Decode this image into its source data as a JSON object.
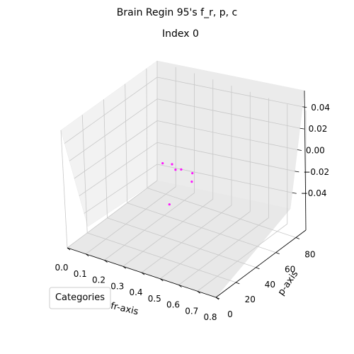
{
  "chart_data": {
    "type": "scatter",
    "title": "Brain Regin 95's f_r, p, c",
    "subtitle": "Index 0",
    "xlabel": "fr-axis",
    "ylabel": "p-axis",
    "zlabel": "",
    "xlim": [
      0,
      0.8
    ],
    "ylim": [
      0,
      90
    ],
    "zlim": [
      -0.055,
      0.055
    ],
    "xticks": [
      "0.0",
      "0.1",
      "0.2",
      "0.3",
      "0.4",
      "0.5",
      "0.6",
      "0.7",
      "0.8"
    ],
    "yticks": [
      "0",
      "20",
      "40",
      "60",
      "80"
    ],
    "zticks": [
      "0.04",
      "0.02",
      "0.00",
      "−0.02",
      "−0.04"
    ],
    "grid": true,
    "legend": {
      "title": "Categories",
      "placement": "lower-left"
    },
    "series": [
      {
        "color": "#ff00ff",
        "points": [
          {
            "x": 0.04,
            "y": 88,
            "z": 0.0
          },
          {
            "x": 0.08,
            "y": 90,
            "z": 0.0
          },
          {
            "x": 0.12,
            "y": 86,
            "z": 0.0
          },
          {
            "x": 0.14,
            "y": 88,
            "z": 0.0
          },
          {
            "x": 0.2,
            "y": 88,
            "z": 0.0
          },
          {
            "x": 0.24,
            "y": 80,
            "z": 0.0
          },
          {
            "x": 0.27,
            "y": 52,
            "z": 0.0
          }
        ]
      }
    ]
  }
}
